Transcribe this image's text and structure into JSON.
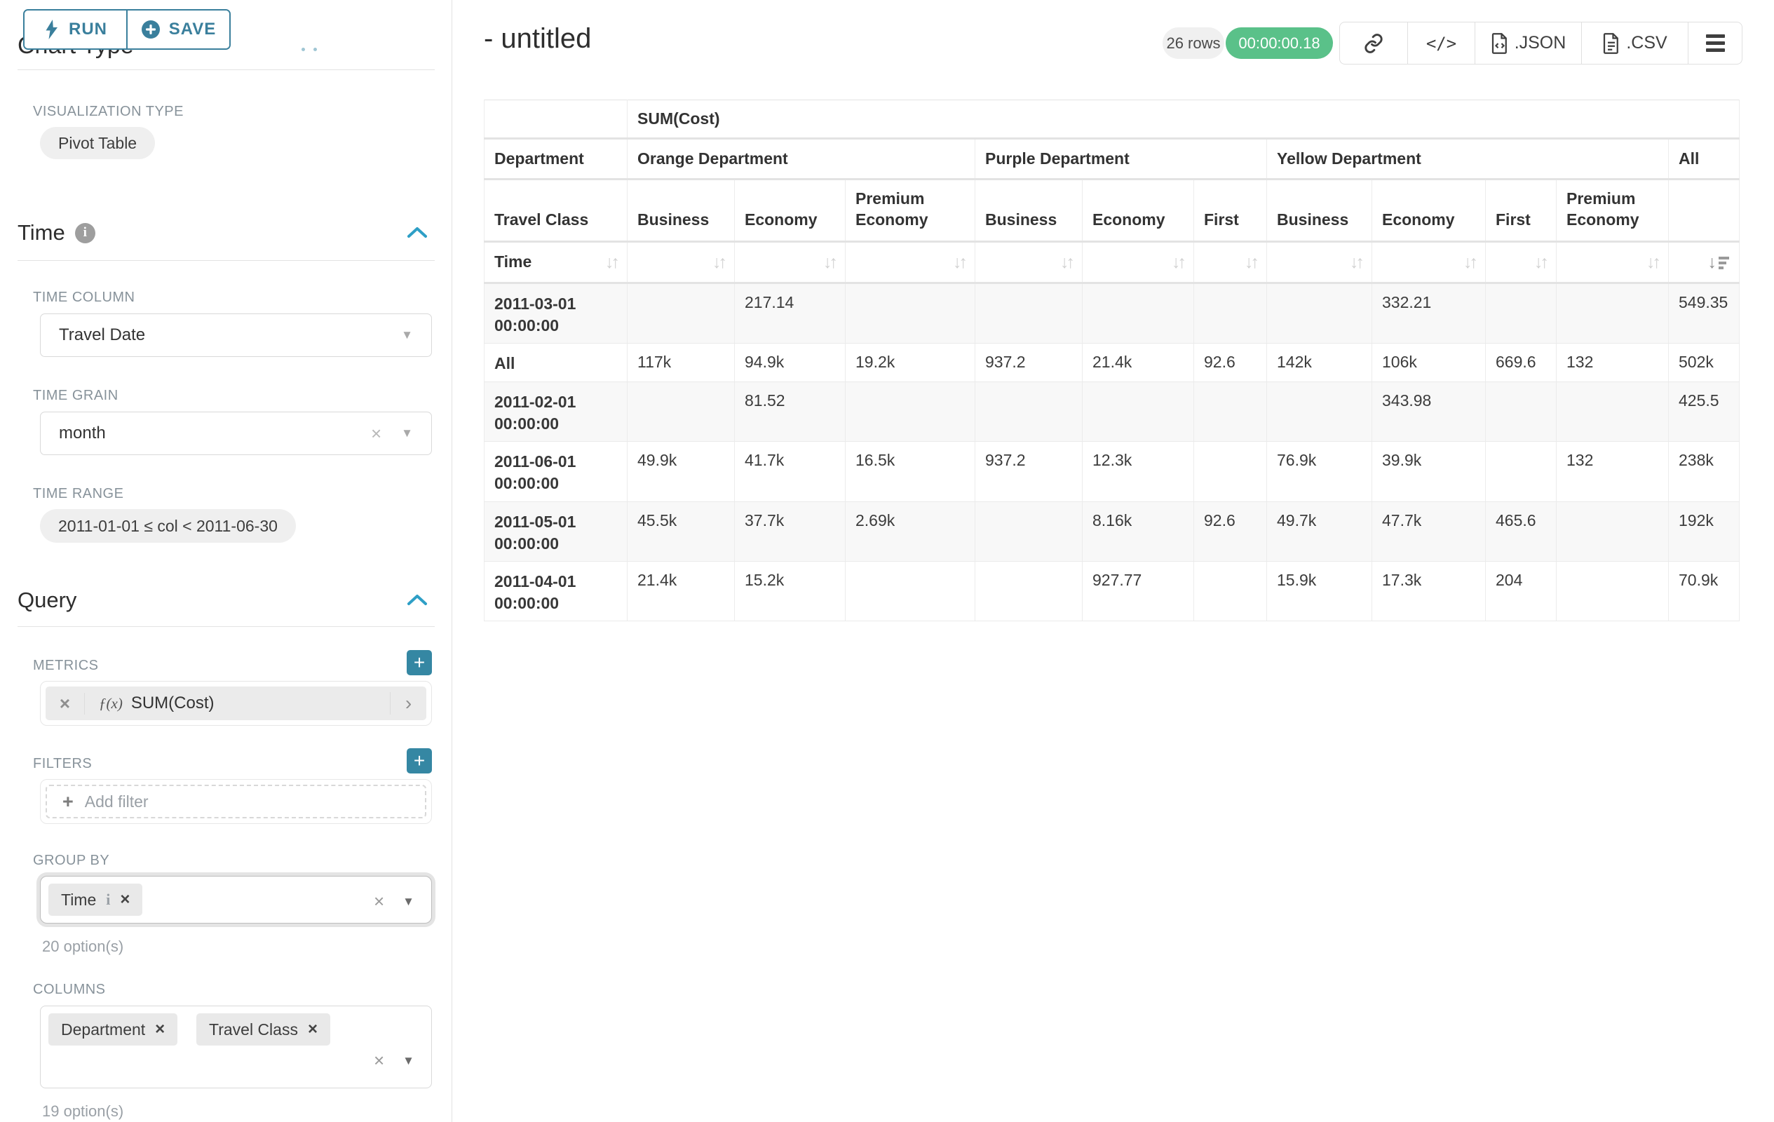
{
  "sidebar": {
    "run_label": "RUN",
    "save_label": "SAVE",
    "chart_type_section": "Chart Type",
    "visualization_type_label": "VISUALIZATION TYPE",
    "visualization_type_value": "Pivot Table",
    "time_section": "Time",
    "time_column_label": "TIME COLUMN",
    "time_column_value": "Travel Date",
    "time_grain_label": "TIME GRAIN",
    "time_grain_value": "month",
    "time_range_label": "TIME RANGE",
    "time_range_value": "2011-01-01 ≤ col < 2011-06-30",
    "query_section": "Query",
    "metrics_label": "METRICS",
    "metric_fx": "ƒ(x)",
    "metric_value": "SUM(Cost)",
    "filters_label": "FILTERS",
    "add_filter_label": "Add filter",
    "group_by_label": "GROUP BY",
    "group_by_tag": "Time",
    "group_by_options": "20 option(s)",
    "columns_label": "COLUMNS",
    "columns_tags": [
      "Department",
      "Travel Class"
    ],
    "columns_options": "19 option(s)"
  },
  "header": {
    "title": "- untitled",
    "row_count": "26 rows",
    "timer": "00:00:00.18",
    "export_json_label": ".JSON",
    "export_csv_label": ".CSV"
  },
  "colors": {
    "accent_teal": "#3a7f9c",
    "plus_button_teal": "#3587a3",
    "timer_green": "#5ac189",
    "chevron_blue": "#2e9fc6"
  },
  "chart_data": {
    "type": "table",
    "metric_header": "SUM(Cost)",
    "row_dimension_label": "Department",
    "row_dimension2_label": "Travel Class",
    "time_axis_label": "Time",
    "column_groups": [
      {
        "label": "Orange Department",
        "columns": [
          "Business",
          "Economy",
          "Premium Economy"
        ]
      },
      {
        "label": "Purple Department",
        "columns": [
          "Business",
          "Economy",
          "First"
        ]
      },
      {
        "label": "Yellow Department",
        "columns": [
          "Business",
          "Economy",
          "First",
          "Premium Economy"
        ]
      },
      {
        "label": "All",
        "columns": [
          ""
        ]
      }
    ],
    "rows": [
      {
        "label": "2011-03-01 00:00:00",
        "values": [
          "",
          "217.14",
          "",
          "",
          "",
          "",
          "",
          "332.21",
          "",
          "",
          "549.35"
        ]
      },
      {
        "label": "All",
        "values": [
          "117k",
          "94.9k",
          "19.2k",
          "937.2",
          "21.4k",
          "92.6",
          "142k",
          "106k",
          "669.6",
          "132",
          "502k"
        ]
      },
      {
        "label": "2011-02-01 00:00:00",
        "values": [
          "",
          "81.52",
          "",
          "",
          "",
          "",
          "",
          "343.98",
          "",
          "",
          "425.5"
        ]
      },
      {
        "label": "2011-06-01 00:00:00",
        "values": [
          "49.9k",
          "41.7k",
          "16.5k",
          "937.2",
          "12.3k",
          "",
          "76.9k",
          "39.9k",
          "",
          "132",
          "238k"
        ]
      },
      {
        "label": "2011-05-01 00:00:00",
        "values": [
          "45.5k",
          "37.7k",
          "2.69k",
          "",
          "8.16k",
          "92.6",
          "49.7k",
          "47.7k",
          "465.6",
          "",
          "192k"
        ]
      },
      {
        "label": "2011-04-01 00:00:00",
        "values": [
          "21.4k",
          "15.2k",
          "",
          "",
          "927.77",
          "",
          "15.9k",
          "17.3k",
          "204",
          "",
          "70.9k"
        ]
      }
    ]
  }
}
